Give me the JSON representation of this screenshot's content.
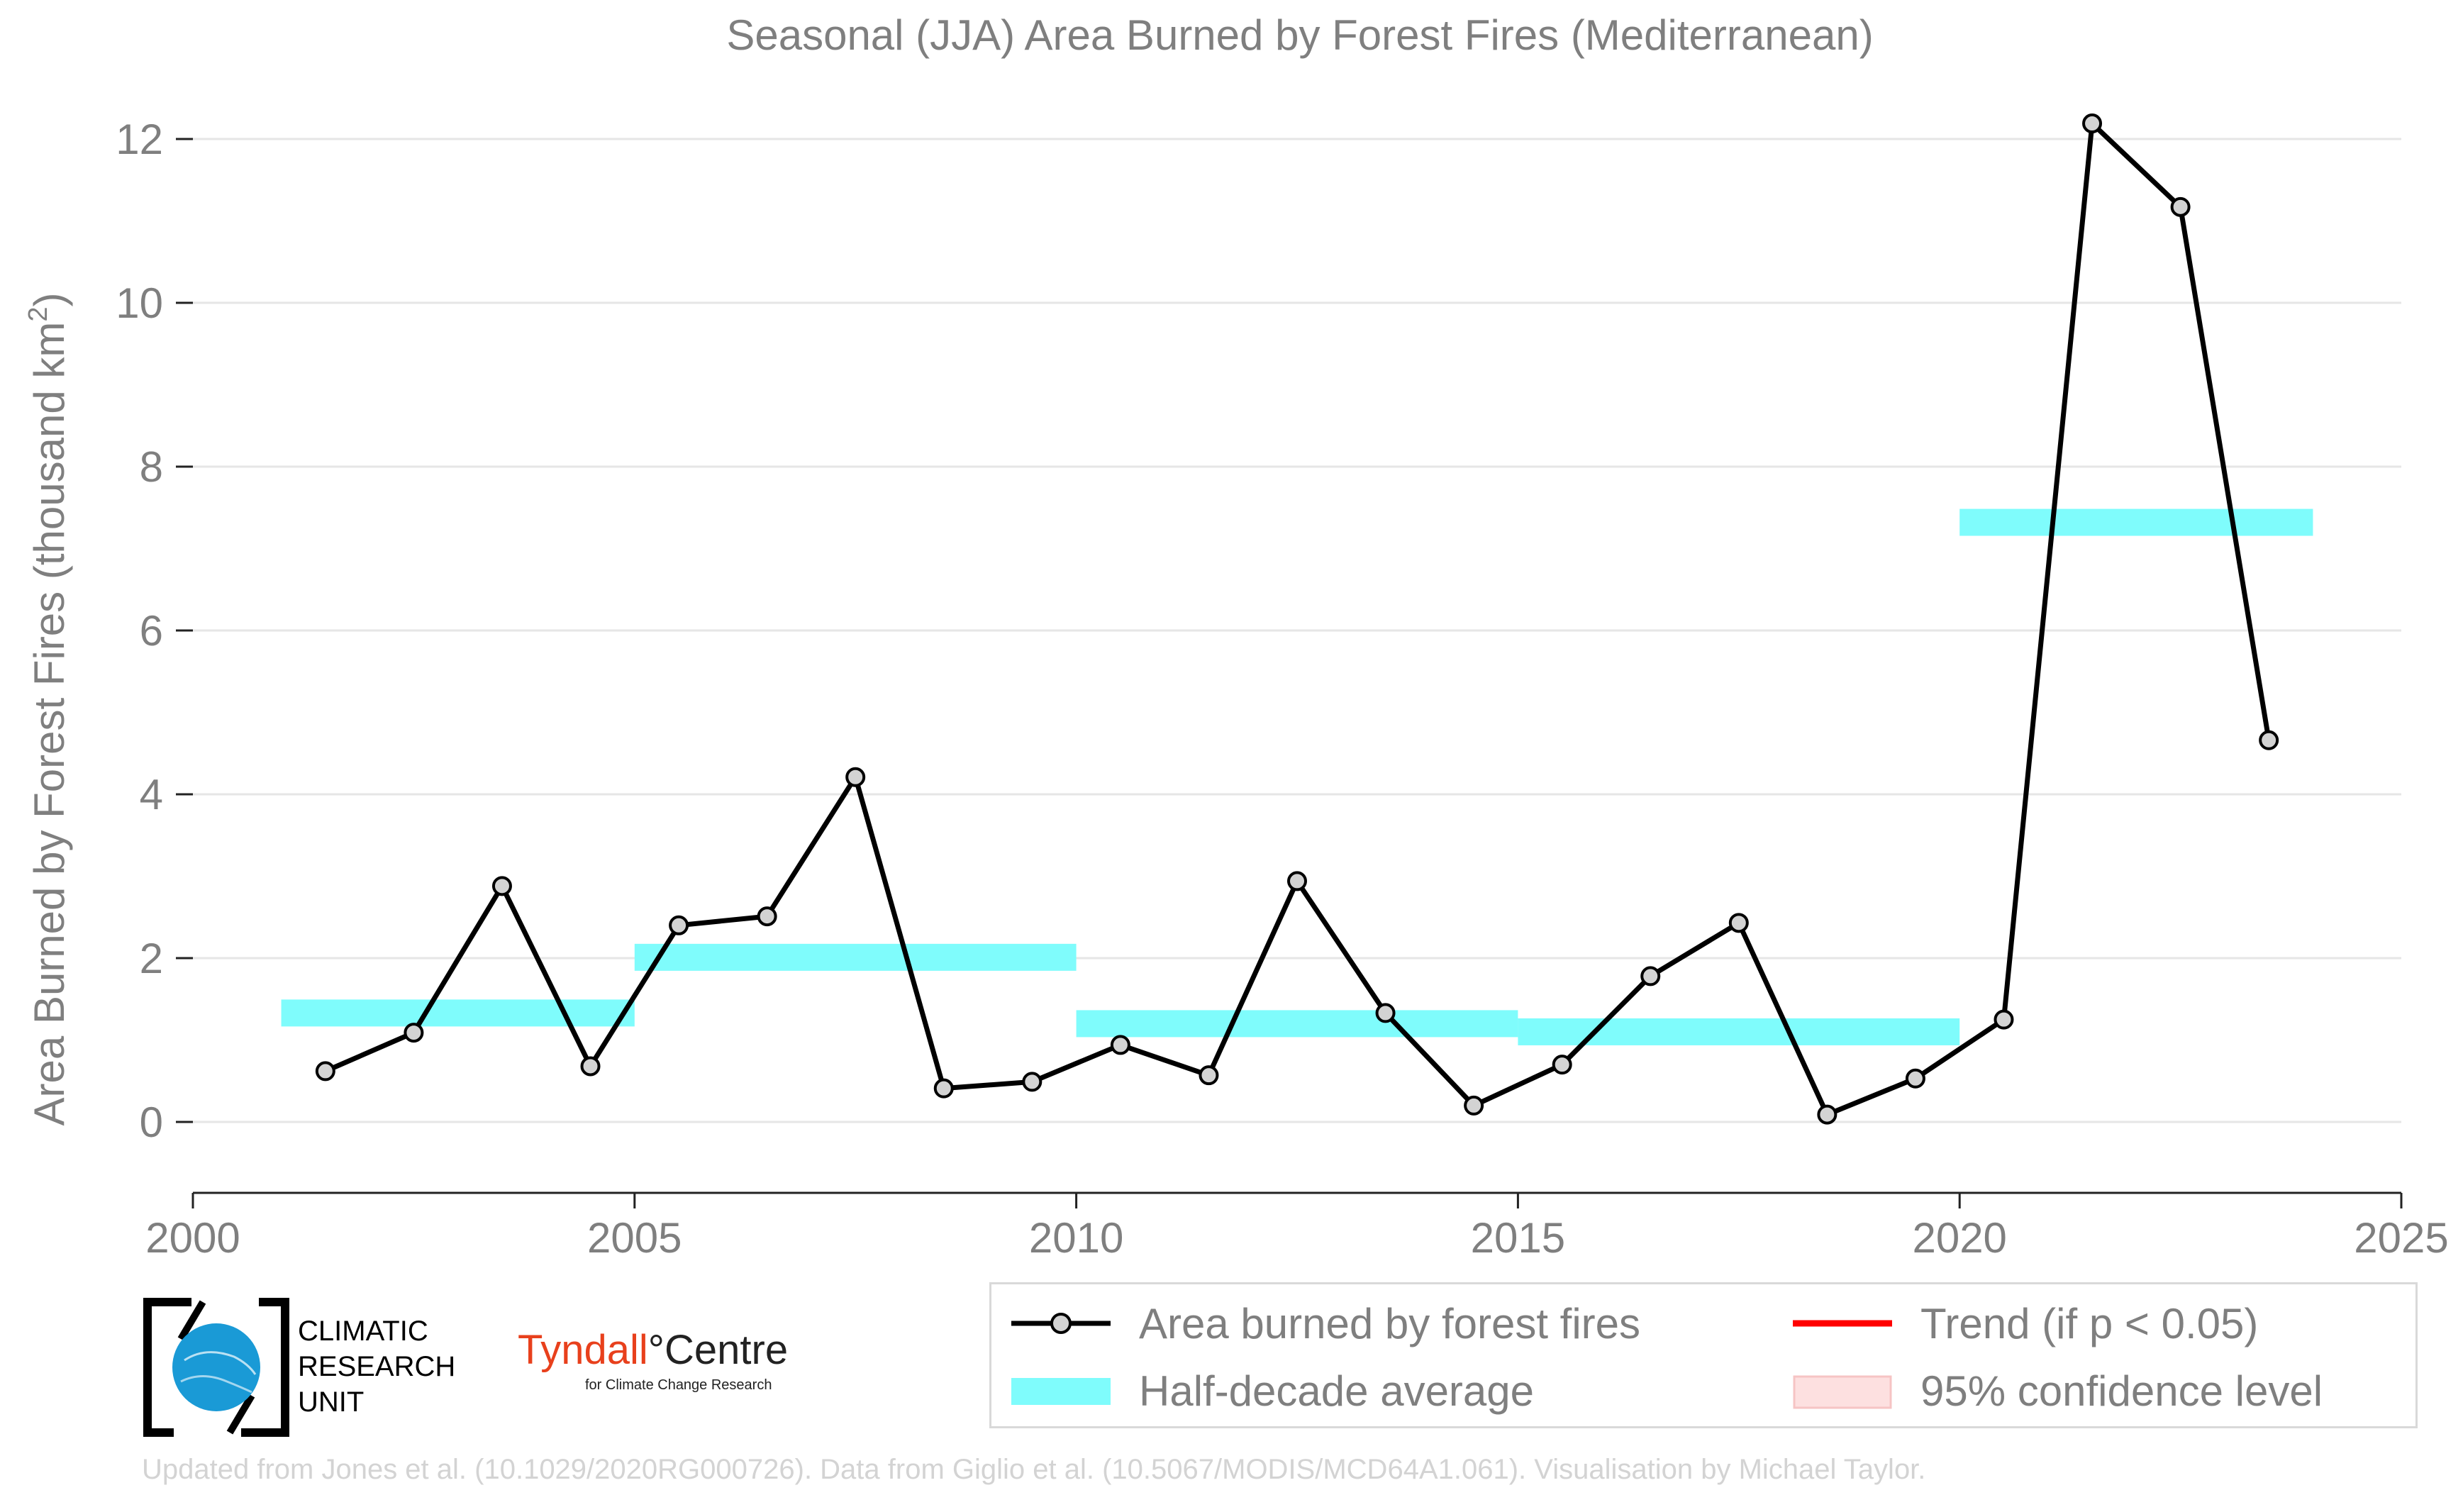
{
  "chart_data": {
    "type": "line",
    "title": "Seasonal (JJA) Area Burned by Forest Fires (Mediterranean)",
    "xlabel": "",
    "ylabel": "Area Burned by Forest Fires (thousand km²)",
    "ylabel_main": "Area Burned by Forest Fires (thousand km",
    "ylabel_sup": "2",
    "ylabel_close": ")",
    "xlim": [
      2000,
      2025
    ],
    "ylim": [
      -0.85,
      12.5
    ],
    "x_ticks": [
      2000,
      2005,
      2010,
      2015,
      2020,
      2025
    ],
    "y_ticks": [
      0,
      2,
      4,
      6,
      8,
      10,
      12
    ],
    "grid": "horizontal",
    "series": [
      {
        "name": "Area burned by forest fires",
        "color": "#000000",
        "marker_color": "#d3d3d3",
        "x": [
          2001.5,
          2002.5,
          2003.5,
          2004.5,
          2005.5,
          2006.5,
          2007.5,
          2008.5,
          2009.5,
          2010.5,
          2011.5,
          2012.5,
          2013.5,
          2014.5,
          2015.5,
          2016.5,
          2017.5,
          2018.5,
          2019.5,
          2020.5,
          2021.5,
          2022.5,
          2023.5
        ],
        "values": [
          0.62,
          1.09,
          2.88,
          0.68,
          2.4,
          2.51,
          4.21,
          0.41,
          0.49,
          0.94,
          0.57,
          2.94,
          1.33,
          0.2,
          0.7,
          1.78,
          2.43,
          0.09,
          0.53,
          1.25,
          12.19,
          11.17,
          4.66
        ]
      }
    ],
    "half_decade_averages": {
      "name": "Half-decade average",
      "color": "#7ffcfc",
      "segments": [
        {
          "start": 2001,
          "end": 2005,
          "value": 1.33
        },
        {
          "start": 2005,
          "end": 2010,
          "value": 2.01
        },
        {
          "start": 2010,
          "end": 2015,
          "value": 1.2
        },
        {
          "start": 2015,
          "end": 2020,
          "value": 1.1
        },
        {
          "start": 2020,
          "end": 2024,
          "value": 7.32
        }
      ]
    },
    "legend_placement": "bottom-right",
    "legend": [
      {
        "label": "Area burned by forest fires",
        "kind": "line-marker",
        "color": "#000000"
      },
      {
        "label": "Trend (if p < 0.05)",
        "kind": "line",
        "color": "#ff0000"
      },
      {
        "label": "Half-decade average",
        "kind": "band",
        "color": "#7ffcfc"
      },
      {
        "label": "95% confidence level",
        "kind": "band",
        "color": "#fde0e0"
      }
    ]
  },
  "logos": {
    "cru_lines": [
      "CLIMATIC",
      "RESEARCH",
      "UNIT"
    ],
    "tyndall_name": "Tyndall",
    "tyndall_degree": "°",
    "tyndall_centre": "Centre",
    "tyndall_sub": "for Climate Change Research"
  },
  "footer": "Updated from Jones et al. (10.1029/2020RG000726). Data from Giglio et al. (10.5067/MODIS/MCD64A1.061). Visualisation by Michael Taylor.",
  "colors": {
    "axis_text": "#7f7f7f",
    "grid": "#e6e6e6",
    "cru_blue": "#1a9ad6"
  }
}
